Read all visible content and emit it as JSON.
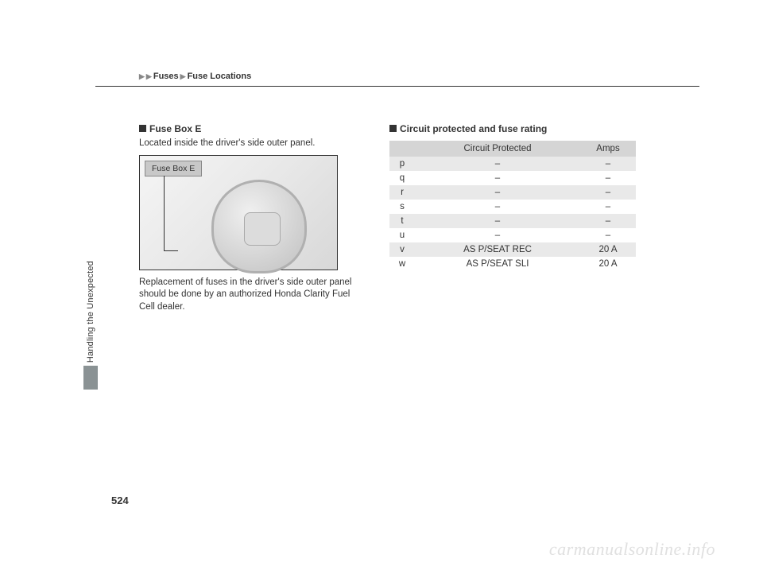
{
  "breadcrumb": {
    "level1": "Fuses",
    "level2": "Fuse Locations"
  },
  "sideLabel": "Handling the Unexpected",
  "pageNumber": "524",
  "watermark": "carmanualsonline.info",
  "leftColumn": {
    "heading": "Fuse Box E",
    "intro": "Located inside the driver's side outer panel.",
    "diagramLabel": "Fuse Box E",
    "note": "Replacement of fuses in the driver's side outer panel should be done by an authorized Honda Clarity Fuel Cell dealer."
  },
  "rightColumn": {
    "heading": "Circuit protected and fuse rating",
    "table": {
      "headers": {
        "circuit": "Circuit Protected",
        "amps": "Amps"
      },
      "rows": [
        {
          "id": "p",
          "circuit": "–",
          "amps": "–",
          "shaded": true
        },
        {
          "id": "q",
          "circuit": "–",
          "amps": "–",
          "shaded": false
        },
        {
          "id": "r",
          "circuit": "–",
          "amps": "–",
          "shaded": true
        },
        {
          "id": "s",
          "circuit": "–",
          "amps": "–",
          "shaded": false
        },
        {
          "id": "t",
          "circuit": "–",
          "amps": "–",
          "shaded": true
        },
        {
          "id": "u",
          "circuit": "–",
          "amps": "–",
          "shaded": false
        },
        {
          "id": "v",
          "circuit": "AS P/SEAT REC",
          "amps": "20 A",
          "shaded": true
        },
        {
          "id": "w",
          "circuit": "AS P/SEAT SLI",
          "amps": "20 A",
          "shaded": false
        }
      ]
    }
  }
}
